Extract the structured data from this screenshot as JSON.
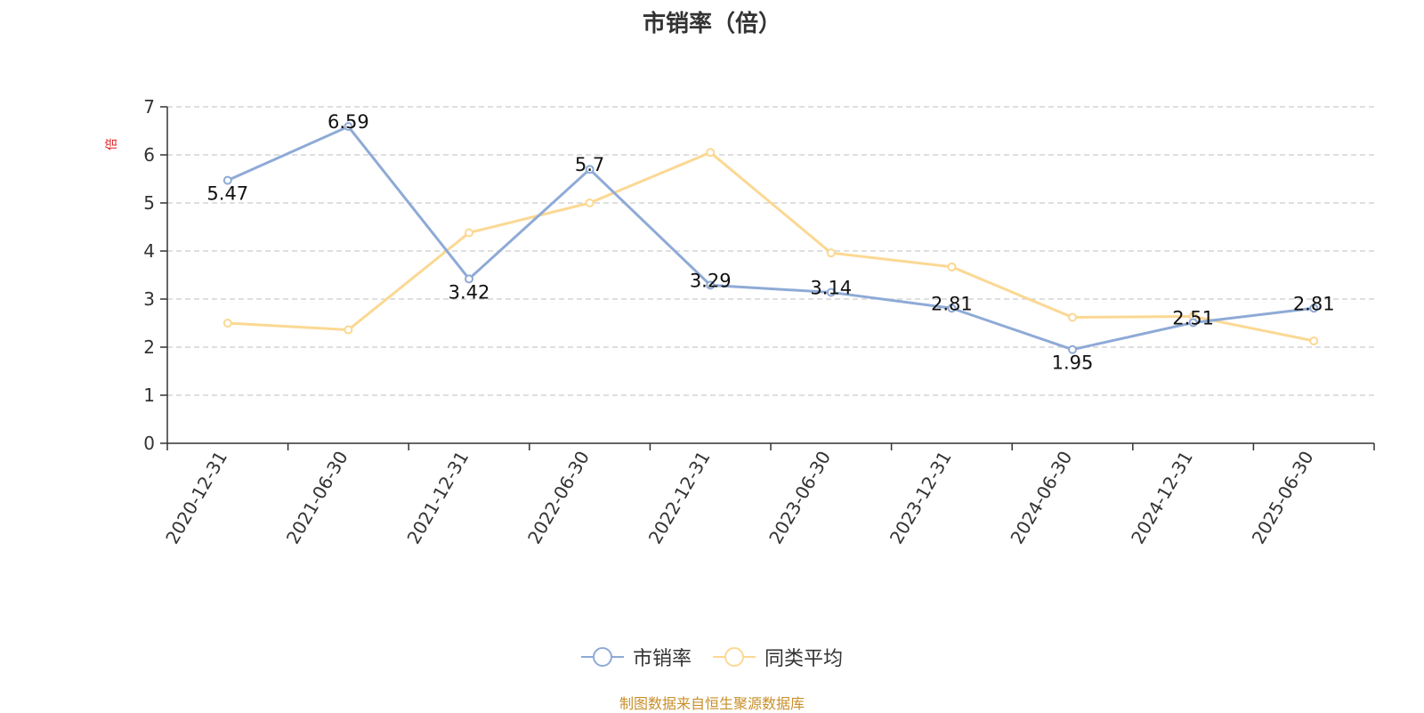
{
  "chart_data": {
    "type": "line",
    "title": "市销率（倍）",
    "ylabel": "倍",
    "xlabel": "",
    "ylim": [
      0,
      7
    ],
    "yticks": [
      0,
      1,
      2,
      3,
      4,
      5,
      6,
      7
    ],
    "grid": true,
    "legend_position": "bottom-center",
    "categories": [
      "2020-12-31",
      "2021-06-30",
      "2021-12-31",
      "2022-06-30",
      "2022-12-31",
      "2023-06-30",
      "2023-12-31",
      "2024-06-30",
      "2024-12-31",
      "2025-06-30"
    ],
    "series": [
      {
        "name": "市销率",
        "color": "#8eaad6",
        "values": [
          5.47,
          6.59,
          3.42,
          5.7,
          3.29,
          3.14,
          2.81,
          1.95,
          2.51,
          2.81
        ],
        "labels": [
          "5.47",
          "6.59",
          "3.42",
          "5.7",
          "3.29",
          "3.14",
          "2.81",
          "1.95",
          "2.51",
          "2.81"
        ]
      },
      {
        "name": "同类平均",
        "color": "#fbd893",
        "values": [
          2.5,
          2.36,
          4.38,
          5.0,
          6.05,
          3.96,
          3.67,
          2.62,
          2.64,
          2.13
        ]
      }
    ]
  },
  "colors": {
    "grid": "#cccccc",
    "axis": "#333333",
    "unit_label": "#e02020"
  },
  "footer": {
    "source": "制图数据来自恒生聚源数据库"
  }
}
